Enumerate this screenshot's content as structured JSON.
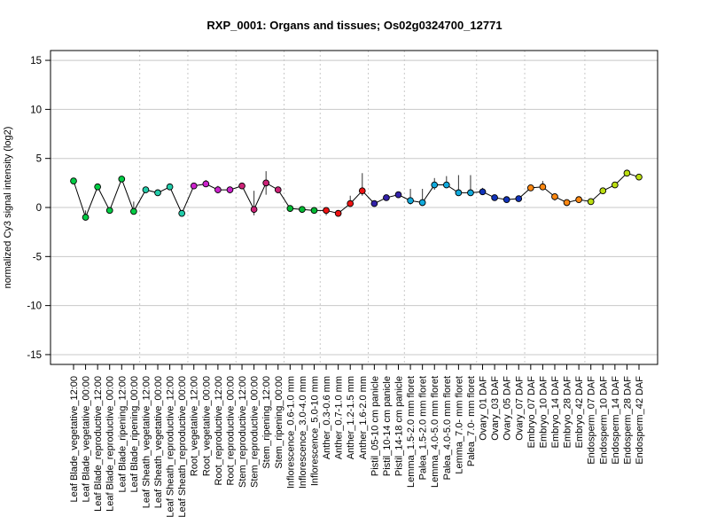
{
  "chart_data": {
    "type": "line",
    "title": "RXP_0001: Organs and tissues; Os02g0324700_12771",
    "xlabel": "",
    "ylabel": "normalized Cy3 signal intensity (log2)",
    "ylim": [
      -16,
      16
    ],
    "yticks": [
      -15,
      -10,
      -5,
      0,
      5,
      10,
      15
    ],
    "grid": true,
    "categories": [
      "Leaf Blade_vegetative_12:00",
      "Leaf Blade_vegetative_00:00",
      "Leaf Blade_reproductive_12:00",
      "Leaf Blade_reproductive_00:00",
      "Leaf Blade_ripening_12:00",
      "Leaf Blade_ripening_00:00",
      "Leaf Sheath_vegetative_12:00",
      "Leaf Sheath_vegetative_00:00",
      "Leaf Sheath_reproductive_12:00",
      "Leaf Sheath_reproductive_00:00",
      "Root_vegetative_12:00",
      "Root_vegetative_00:00",
      "Root_reproductive_12:00",
      "Root_reproductive_00:00",
      "Stem_reproductive_12:00",
      "Stem_reproductive_00:00",
      "Stem_ripening_12:00",
      "Stem_ripening_00:00",
      "Inflorescence_0.6-1.0 mm",
      "Inflorescence_3.0-4.0 mm",
      "Inflorescence_5.0-10 mm",
      "Anther_0.3-0.6 mm",
      "Anther_0.7-1.0 mm",
      "Anther_1.2-1.5 mm",
      "Anther_1.6-2.0 mm",
      "Pistil_05-10 cm panicle",
      "Pistil_10-14 cm panicle",
      "Pistil_14-18 cm panicle",
      "Lemma_1.5-2.0 mm floret",
      "Palea_1.5-2.0 mm floret",
      "Lemma_4.0-5.0 mm floret",
      "Palea_4.0-5.0 mm floret",
      "Lemma_7.0- mm floret",
      "Palea_7.0- mm floret",
      "Ovary_01 DAF",
      "Ovary_03 DAF",
      "Ovary_05 DAF",
      "Ovary_07 DAF",
      "Embryo_07 DAF",
      "Embryo_10 DAF",
      "Embryo_14 DAF",
      "Embryo_28 DAF",
      "Embryo_42 DAF",
      "Endosperm_07 DAF",
      "Endosperm_10 DAF",
      "Endosperm_14 DAF",
      "Endosperm_28 DAF",
      "Endosperm_42 DAF"
    ],
    "values": [
      2.7,
      -1.0,
      2.1,
      -0.3,
      2.9,
      -0.4,
      1.8,
      1.5,
      2.1,
      -0.6,
      2.2,
      2.4,
      1.8,
      1.8,
      2.2,
      -0.2,
      2.5,
      1.8,
      -0.1,
      -0.2,
      -0.3,
      -0.3,
      -0.6,
      0.4,
      1.7,
      0.4,
      1.0,
      1.3,
      0.7,
      0.5,
      2.3,
      2.3,
      1.5,
      1.5,
      1.6,
      1.0,
      0.8,
      0.9,
      2.0,
      2.1,
      1.1,
      0.5,
      0.8,
      0.6,
      1.7,
      2.3,
      3.5,
      3.1
    ],
    "error_low": [
      2.7,
      -0.7,
      2.1,
      -0.3,
      2.9,
      -0.3,
      1.8,
      1.5,
      2.1,
      -0.6,
      2.2,
      2.3,
      1.5,
      1.7,
      2.2,
      -0.8,
      1.3,
      1.8,
      -0.1,
      -0.2,
      -0.3,
      -0.8,
      -0.6,
      0.4,
      1.2,
      0.4,
      1.0,
      1.3,
      0.3,
      0.5,
      1.8,
      2.0,
      1.2,
      1.3,
      1.6,
      0.9,
      0.8,
      0.9,
      2.0,
      1.8,
      0.7,
      0.5,
      0.8,
      0.6,
      1.5,
      2.1,
      3.2,
      3.1
    ],
    "error_high": [
      2.7,
      -0.3,
      2.1,
      -0.3,
      2.9,
      0.6,
      1.8,
      1.5,
      2.1,
      -0.3,
      2.2,
      2.8,
      2.2,
      2.0,
      2.2,
      1.7,
      3.7,
      1.8,
      -0.1,
      -0.2,
      -0.3,
      0.0,
      -0.6,
      1.2,
      3.5,
      0.4,
      1.0,
      1.3,
      1.9,
      1.9,
      3.0,
      3.2,
      3.3,
      3.3,
      2.0,
      1.1,
      0.8,
      0.9,
      2.0,
      2.7,
      1.1,
      0.5,
      0.8,
      0.6,
      2.0,
      2.5,
      3.8,
      3.1
    ],
    "colors": [
      "#00cc44",
      "#00cc44",
      "#00cc44",
      "#00cc44",
      "#00cc44",
      "#00cc44",
      "#22ccaa",
      "#22ccaa",
      "#22ccaa",
      "#22ccaa",
      "#cc22cc",
      "#cc22cc",
      "#cc22cc",
      "#cc22cc",
      "#cc2277",
      "#cc2277",
      "#cc2277",
      "#cc2277",
      "#00bb33",
      "#00bb33",
      "#00bb33",
      "#ee1111",
      "#ee1111",
      "#ee1111",
      "#ee1111",
      "#3322aa",
      "#3322aa",
      "#3322aa",
      "#11aadd",
      "#11aadd",
      "#11aadd",
      "#11aadd",
      "#11aadd",
      "#11aadd",
      "#1133bb",
      "#1133bb",
      "#1133bb",
      "#1133bb",
      "#ff8811",
      "#ff8811",
      "#ff8811",
      "#ff8811",
      "#ff8811",
      "#bbdd11",
      "#bbdd11",
      "#bbdd11",
      "#bbdd11",
      "#bbdd11"
    ],
    "group_separators_after": [
      5,
      9,
      13,
      17,
      20,
      24,
      27,
      33,
      37,
      42
    ]
  }
}
